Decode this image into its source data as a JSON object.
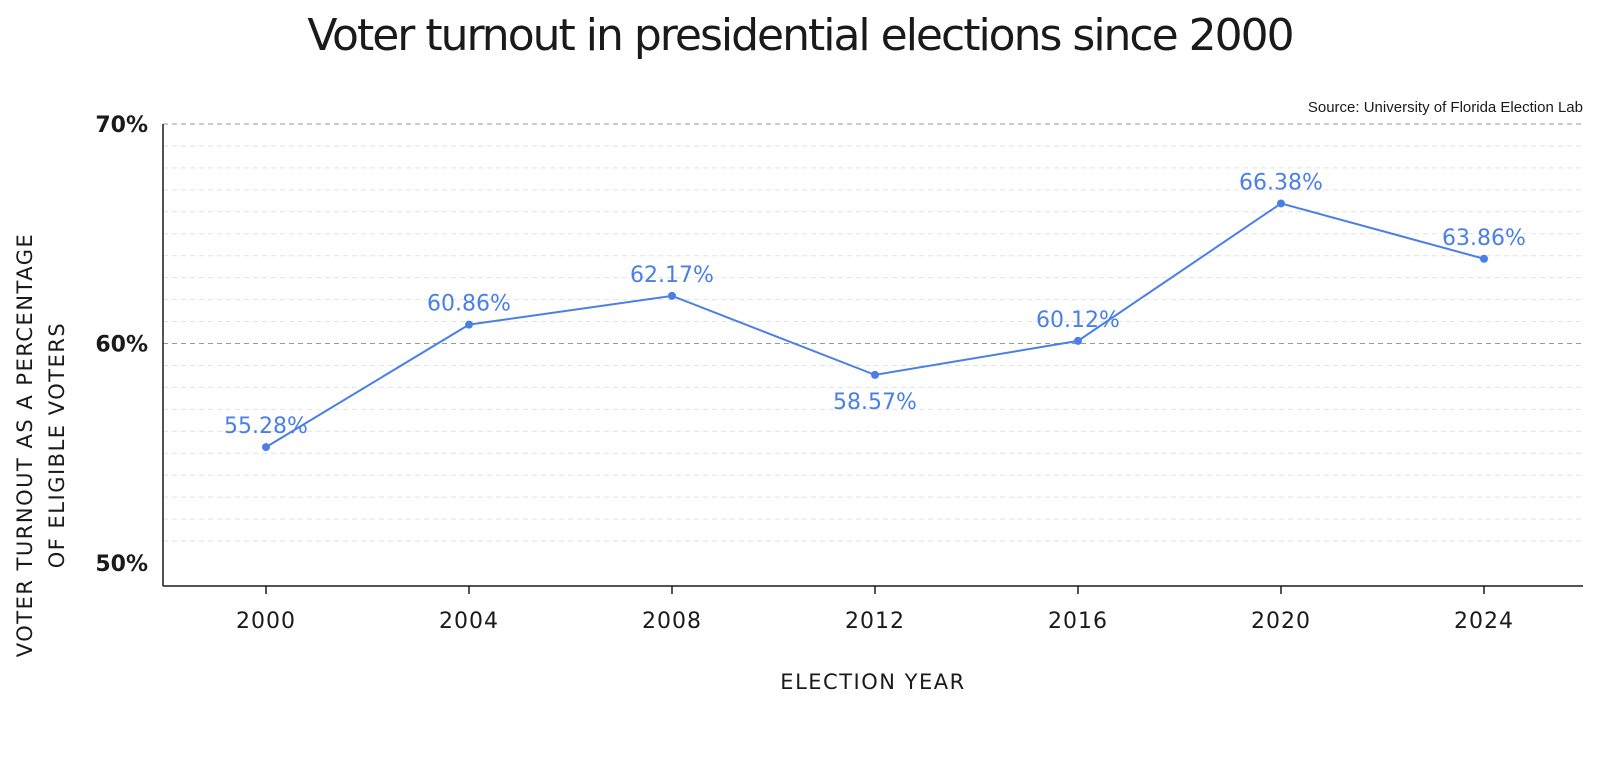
{
  "chart_data": {
    "type": "line",
    "title": "Voter turnout in presidential elections since 2000",
    "source": "Source: University of Florida Election Lab",
    "xlabel": "ELECTION YEAR",
    "ylabel": [
      "VOTER TURNOUT AS A PERCENTAGE",
      "OF ELIGIBLE VOTERS"
    ],
    "categories": [
      "2000",
      "2004",
      "2008",
      "2012",
      "2016",
      "2020",
      "2024"
    ],
    "ylim": [
      50,
      70
    ],
    "yticks": [
      {
        "value": 50,
        "label": "50%"
      },
      {
        "value": 60,
        "label": "60%"
      },
      {
        "value": 70,
        "label": "70%"
      }
    ],
    "grid": true,
    "series": [
      {
        "values": [
          55.28,
          60.86,
          62.17,
          58.57,
          60.12,
          66.38,
          63.86
        ],
        "labels": [
          "55.28%",
          "60.86%",
          "62.17%",
          "58.57%",
          "60.12%",
          "66.38%",
          "63.86%"
        ],
        "label_positions": [
          "above",
          "above",
          "above",
          "below",
          "above",
          "above",
          "above"
        ],
        "color": "#4a7fe8"
      }
    ]
  }
}
